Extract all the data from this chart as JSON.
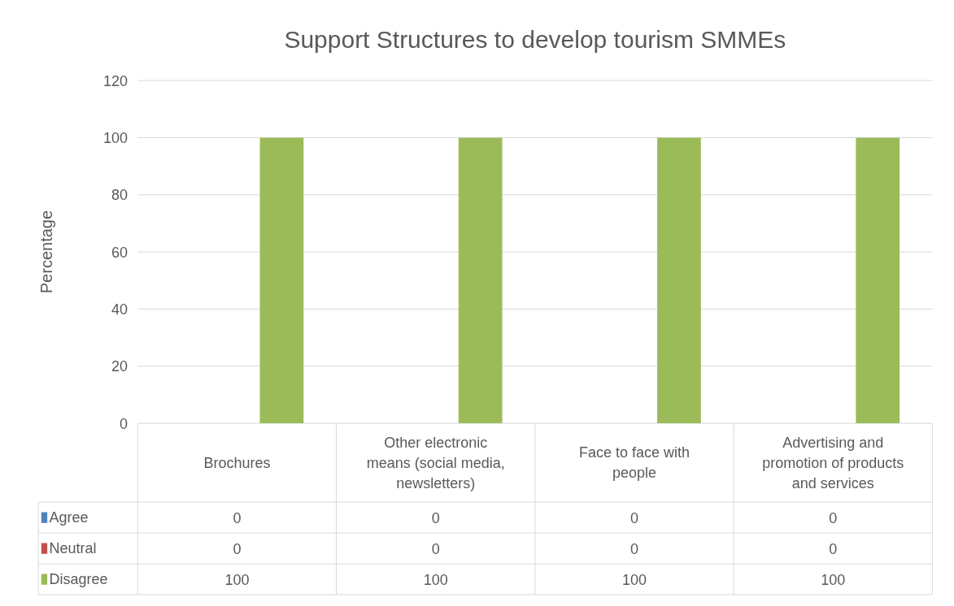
{
  "chart_data": {
    "type": "bar",
    "title": "Support Structures to develop tourism SMMEs",
    "ylabel": "Percentage",
    "categories": [
      "Brochures",
      "Other electronic means (social media, newsletters)",
      "Face to face with people",
      "Advertising and promotion of products and services"
    ],
    "series": [
      {
        "name": "Agree",
        "color": "#4f81bd",
        "values": [
          0,
          0,
          0,
          0
        ]
      },
      {
        "name": "Neutral",
        "color": "#c0504d",
        "values": [
          0,
          0,
          0,
          0
        ]
      },
      {
        "name": "Disagree",
        "color": "#9bbb59",
        "values": [
          100,
          100,
          100,
          100
        ]
      }
    ],
    "ylim": [
      0,
      120
    ],
    "yticks": [
      0,
      20,
      40,
      60,
      80,
      100,
      120
    ],
    "grid": "y",
    "legend": "bottom",
    "data_labels": true
  }
}
